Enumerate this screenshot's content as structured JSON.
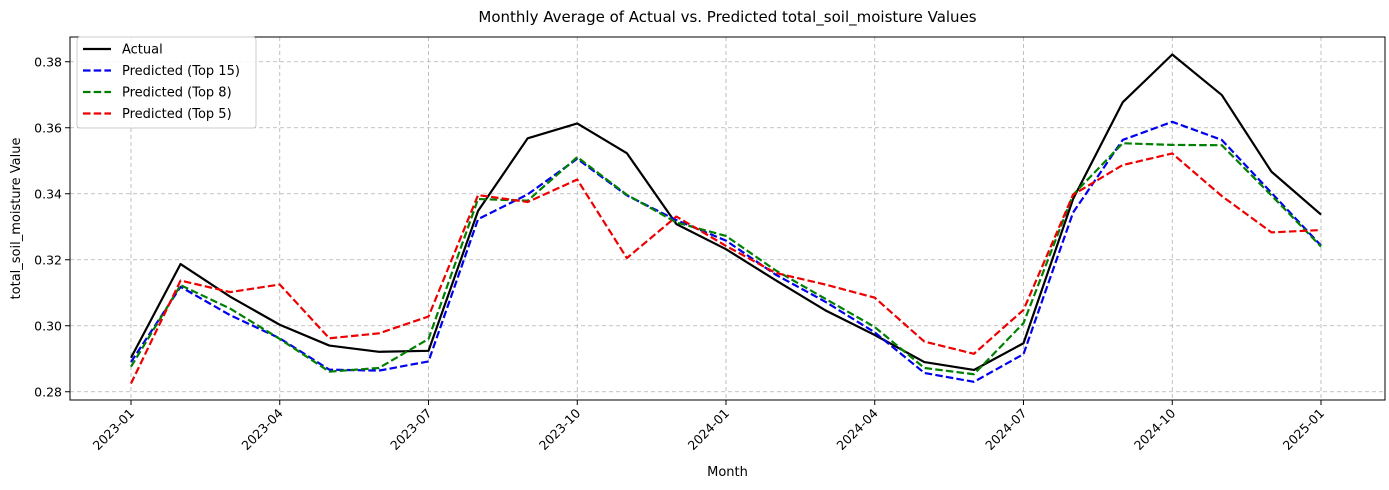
{
  "chart_data": {
    "type": "line",
    "title": "Monthly Average of Actual vs. Predicted total_soil_moisture Values",
    "xlabel": "Month",
    "ylabel": "total_soil_moisture Value",
    "x": [
      "2023-01",
      "2023-02",
      "2023-03",
      "2023-04",
      "2023-05",
      "2023-06",
      "2023-07",
      "2023-08",
      "2023-09",
      "2023-10",
      "2023-11",
      "2023-12",
      "2024-01",
      "2024-02",
      "2024-03",
      "2024-04",
      "2024-05",
      "2024-06",
      "2024-07",
      "2024-08",
      "2024-09",
      "2024-10",
      "2024-11",
      "2024-12",
      "2025-01"
    ],
    "xticks": [
      "2023-01",
      "2023-04",
      "2023-07",
      "2023-10",
      "2024-01",
      "2024-04",
      "2024-07",
      "2024-10",
      "2025-01"
    ],
    "ylim": [
      0.2775,
      0.3875
    ],
    "yticks": [
      "0.28",
      "0.30",
      "0.32",
      "0.34",
      "0.36",
      "0.38"
    ],
    "grid": true,
    "legend_position": "top-left",
    "series": [
      {
        "name": "Actual",
        "color": "#000000",
        "dash": "solid",
        "values": [
          0.2903,
          0.3187,
          0.3088,
          0.3003,
          0.294,
          0.2921,
          0.2924,
          0.3348,
          0.3568,
          0.3613,
          0.3523,
          0.3308,
          0.3232,
          0.3138,
          0.3047,
          0.2972,
          0.289,
          0.2866,
          0.2947,
          0.3384,
          0.3677,
          0.3822,
          0.3699,
          0.3467,
          0.3337
        ]
      },
      {
        "name": "Predicted (Top 15)",
        "color": "#0000ee",
        "dash": "dashed",
        "values": [
          0.289,
          0.3118,
          0.3032,
          0.2962,
          0.2867,
          0.2864,
          0.2892,
          0.3323,
          0.3398,
          0.3506,
          0.3395,
          0.332,
          0.3258,
          0.3155,
          0.3073,
          0.298,
          0.2857,
          0.283,
          0.2914,
          0.3343,
          0.3563,
          0.3618,
          0.3563,
          0.3403,
          0.3243
        ]
      },
      {
        "name": "Predicted (Top 8)",
        "color": "#008000",
        "dash": "dashed",
        "values": [
          0.2876,
          0.3123,
          0.3052,
          0.296,
          0.2861,
          0.2872,
          0.296,
          0.3384,
          0.3379,
          0.3511,
          0.3397,
          0.3313,
          0.3272,
          0.3168,
          0.3082,
          0.2996,
          0.2872,
          0.2853,
          0.3008,
          0.3397,
          0.3553,
          0.3548,
          0.3547,
          0.3395,
          0.324
        ]
      },
      {
        "name": "Predicted (Top 5)",
        "color": "#ee0000",
        "dash": "dashed",
        "values": [
          0.2825,
          0.3137,
          0.3102,
          0.3125,
          0.2962,
          0.2977,
          0.3028,
          0.3396,
          0.3375,
          0.3443,
          0.3205,
          0.3331,
          0.3242,
          0.316,
          0.3125,
          0.3085,
          0.2952,
          0.2915,
          0.3048,
          0.3397,
          0.3487,
          0.3522,
          0.3393,
          0.3283,
          0.329
        ]
      }
    ]
  }
}
